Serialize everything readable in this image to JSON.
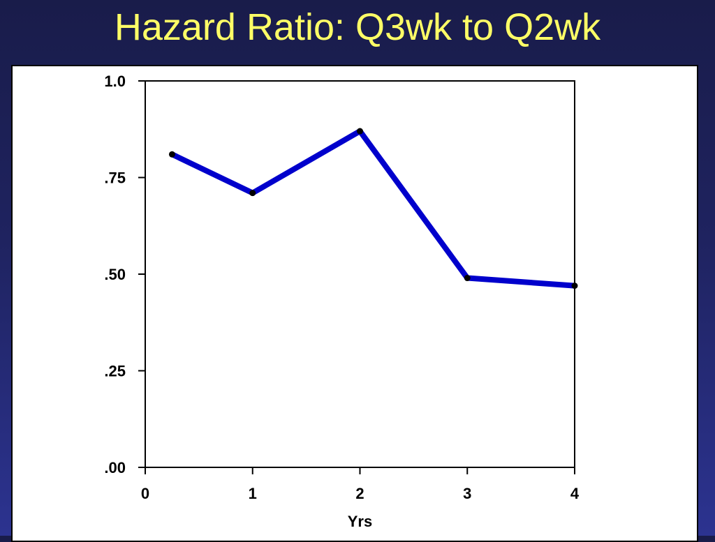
{
  "slide": {
    "title": "Hazard Ratio: Q3wk to Q2wk"
  },
  "colors": {
    "background_top": "#191c4a",
    "background_bottom": "#2c3390",
    "title": "#ffff66",
    "panel": "#ffffff",
    "line": "#0000cc",
    "marker": "#000000"
  },
  "chart_data": {
    "type": "line",
    "title": "",
    "xlabel": "Yrs",
    "ylabel": "",
    "xlim": [
      0,
      4
    ],
    "ylim": [
      0,
      1
    ],
    "x_ticks": [
      0,
      1,
      2,
      3,
      4
    ],
    "x_tick_labels": [
      "0",
      "1",
      "2",
      "3",
      "4"
    ],
    "y_ticks": [
      0,
      0.25,
      0.5,
      0.75,
      1.0
    ],
    "y_tick_labels": [
      ".00",
      ".25",
      ".50",
      ".75",
      "1.0"
    ],
    "grid": false,
    "legend": "none",
    "series": [
      {
        "x": [
          0.25,
          1,
          2,
          3,
          4
        ],
        "y": [
          0.81,
          0.71,
          0.87,
          0.49,
          0.47
        ]
      }
    ]
  }
}
